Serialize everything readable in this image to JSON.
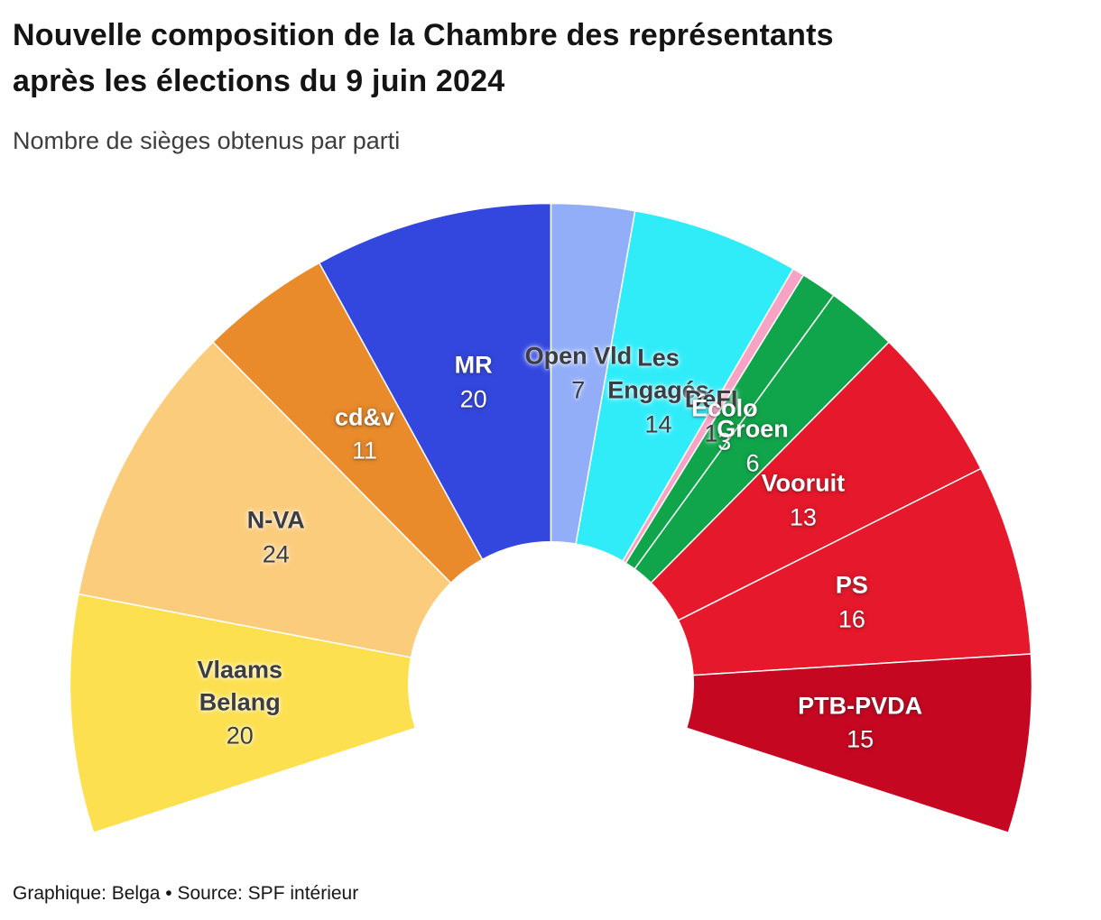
{
  "header": {
    "title_line1": "Nouvelle composition de la Chambre des représentants",
    "title_line2": "après les élections du 9 juin 2024",
    "subtitle": "Nombre de sièges obtenus par parti"
  },
  "footer": {
    "credit": "Graphique: Belga • Source: SPF intérieur"
  },
  "chart_data": {
    "type": "half-donut-parliament",
    "title": "Nouvelle composition de la Chambre des représentants après les élections du 9 juin 2024",
    "subtitle": "Nombre de sièges obtenus par parti",
    "total_seats": 150,
    "unit": "sièges",
    "order": "left-to-right",
    "layout": {
      "arc_span_degrees": 216,
      "inner_radius_ratio": 0.296,
      "label_radius_ratio": 0.648,
      "grid": false,
      "legend": "labels-on-slices"
    },
    "parties": [
      {
        "name": "Vlaams Belang",
        "label_lines": [
          "Vlaams",
          "Belang"
        ],
        "seats": 20,
        "color": "#FCE04F",
        "label_style": "dark"
      },
      {
        "name": "N-VA",
        "label_lines": [
          "N-VA"
        ],
        "seats": 24,
        "color": "#FBCC7C",
        "label_style": "dark"
      },
      {
        "name": "cd&v",
        "label_lines": [
          "cd&v"
        ],
        "seats": 11,
        "color": "#E98A2B",
        "label_style": "light"
      },
      {
        "name": "MR",
        "label_lines": [
          "MR"
        ],
        "seats": 20,
        "color": "#3347DF",
        "label_style": "light"
      },
      {
        "name": "Open Vld",
        "label_lines": [
          "Open Vld"
        ],
        "seats": 7,
        "color": "#92AEF8",
        "label_style": "dark"
      },
      {
        "name": "Les Engagés",
        "label_lines": [
          "Les",
          "Engagés"
        ],
        "seats": 14,
        "color": "#30ECF9",
        "label_style": "dark"
      },
      {
        "name": "DéFI",
        "label_lines": [
          "DéFI"
        ],
        "seats": 1,
        "color": "#F8A2C6",
        "label_style": "dark"
      },
      {
        "name": "Écolo",
        "label_lines": [
          "Écolo"
        ],
        "seats": 3,
        "color": "#10A54A",
        "label_style": "light"
      },
      {
        "name": "Groen",
        "label_lines": [
          "Groen"
        ],
        "seats": 6,
        "color": "#10A54A",
        "label_style": "light"
      },
      {
        "name": "Vooruit",
        "label_lines": [
          "Vooruit"
        ],
        "seats": 13,
        "color": "#E6182B",
        "label_style": "light"
      },
      {
        "name": "PS",
        "label_lines": [
          "PS"
        ],
        "seats": 16,
        "color": "#E6182B",
        "label_style": "light"
      },
      {
        "name": "PTB-PVDA",
        "label_lines": [
          "PTB-PVDA"
        ],
        "seats": 15,
        "color": "#C60722",
        "label_style": "light"
      }
    ]
  }
}
